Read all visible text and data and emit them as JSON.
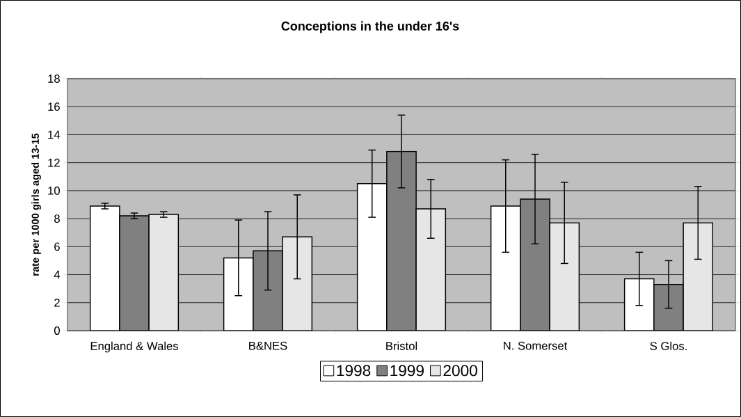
{
  "chart_data": {
    "type": "bar",
    "title": "Conceptions in the under 16's",
    "ylabel": "rate per 1000 girls aged 13-15",
    "categories": [
      "England & Wales",
      "B&NES",
      "Bristol",
      "N. Somerset",
      "S Glos."
    ],
    "series": [
      {
        "name": "1998",
        "color": "#ffffff",
        "values": [
          8.9,
          5.2,
          10.5,
          8.9,
          3.7
        ],
        "errors": [
          0.2,
          2.7,
          2.4,
          3.3,
          1.9
        ]
      },
      {
        "name": "1999",
        "color": "#808080",
        "values": [
          8.2,
          5.7,
          12.8,
          9.4,
          3.3
        ],
        "errors": [
          0.2,
          2.8,
          2.6,
          3.2,
          1.7
        ]
      },
      {
        "name": "2000",
        "color": "#e6e6e6",
        "values": [
          8.3,
          6.7,
          8.7,
          7.7,
          7.7
        ],
        "errors": [
          0.2,
          3.0,
          2.1,
          2.9,
          2.6
        ]
      }
    ],
    "ylim": [
      0,
      18
    ],
    "yticks": [
      0,
      2,
      4,
      6,
      8,
      10,
      12,
      14,
      16,
      18
    ],
    "grid": "y",
    "legend": "bottom"
  }
}
